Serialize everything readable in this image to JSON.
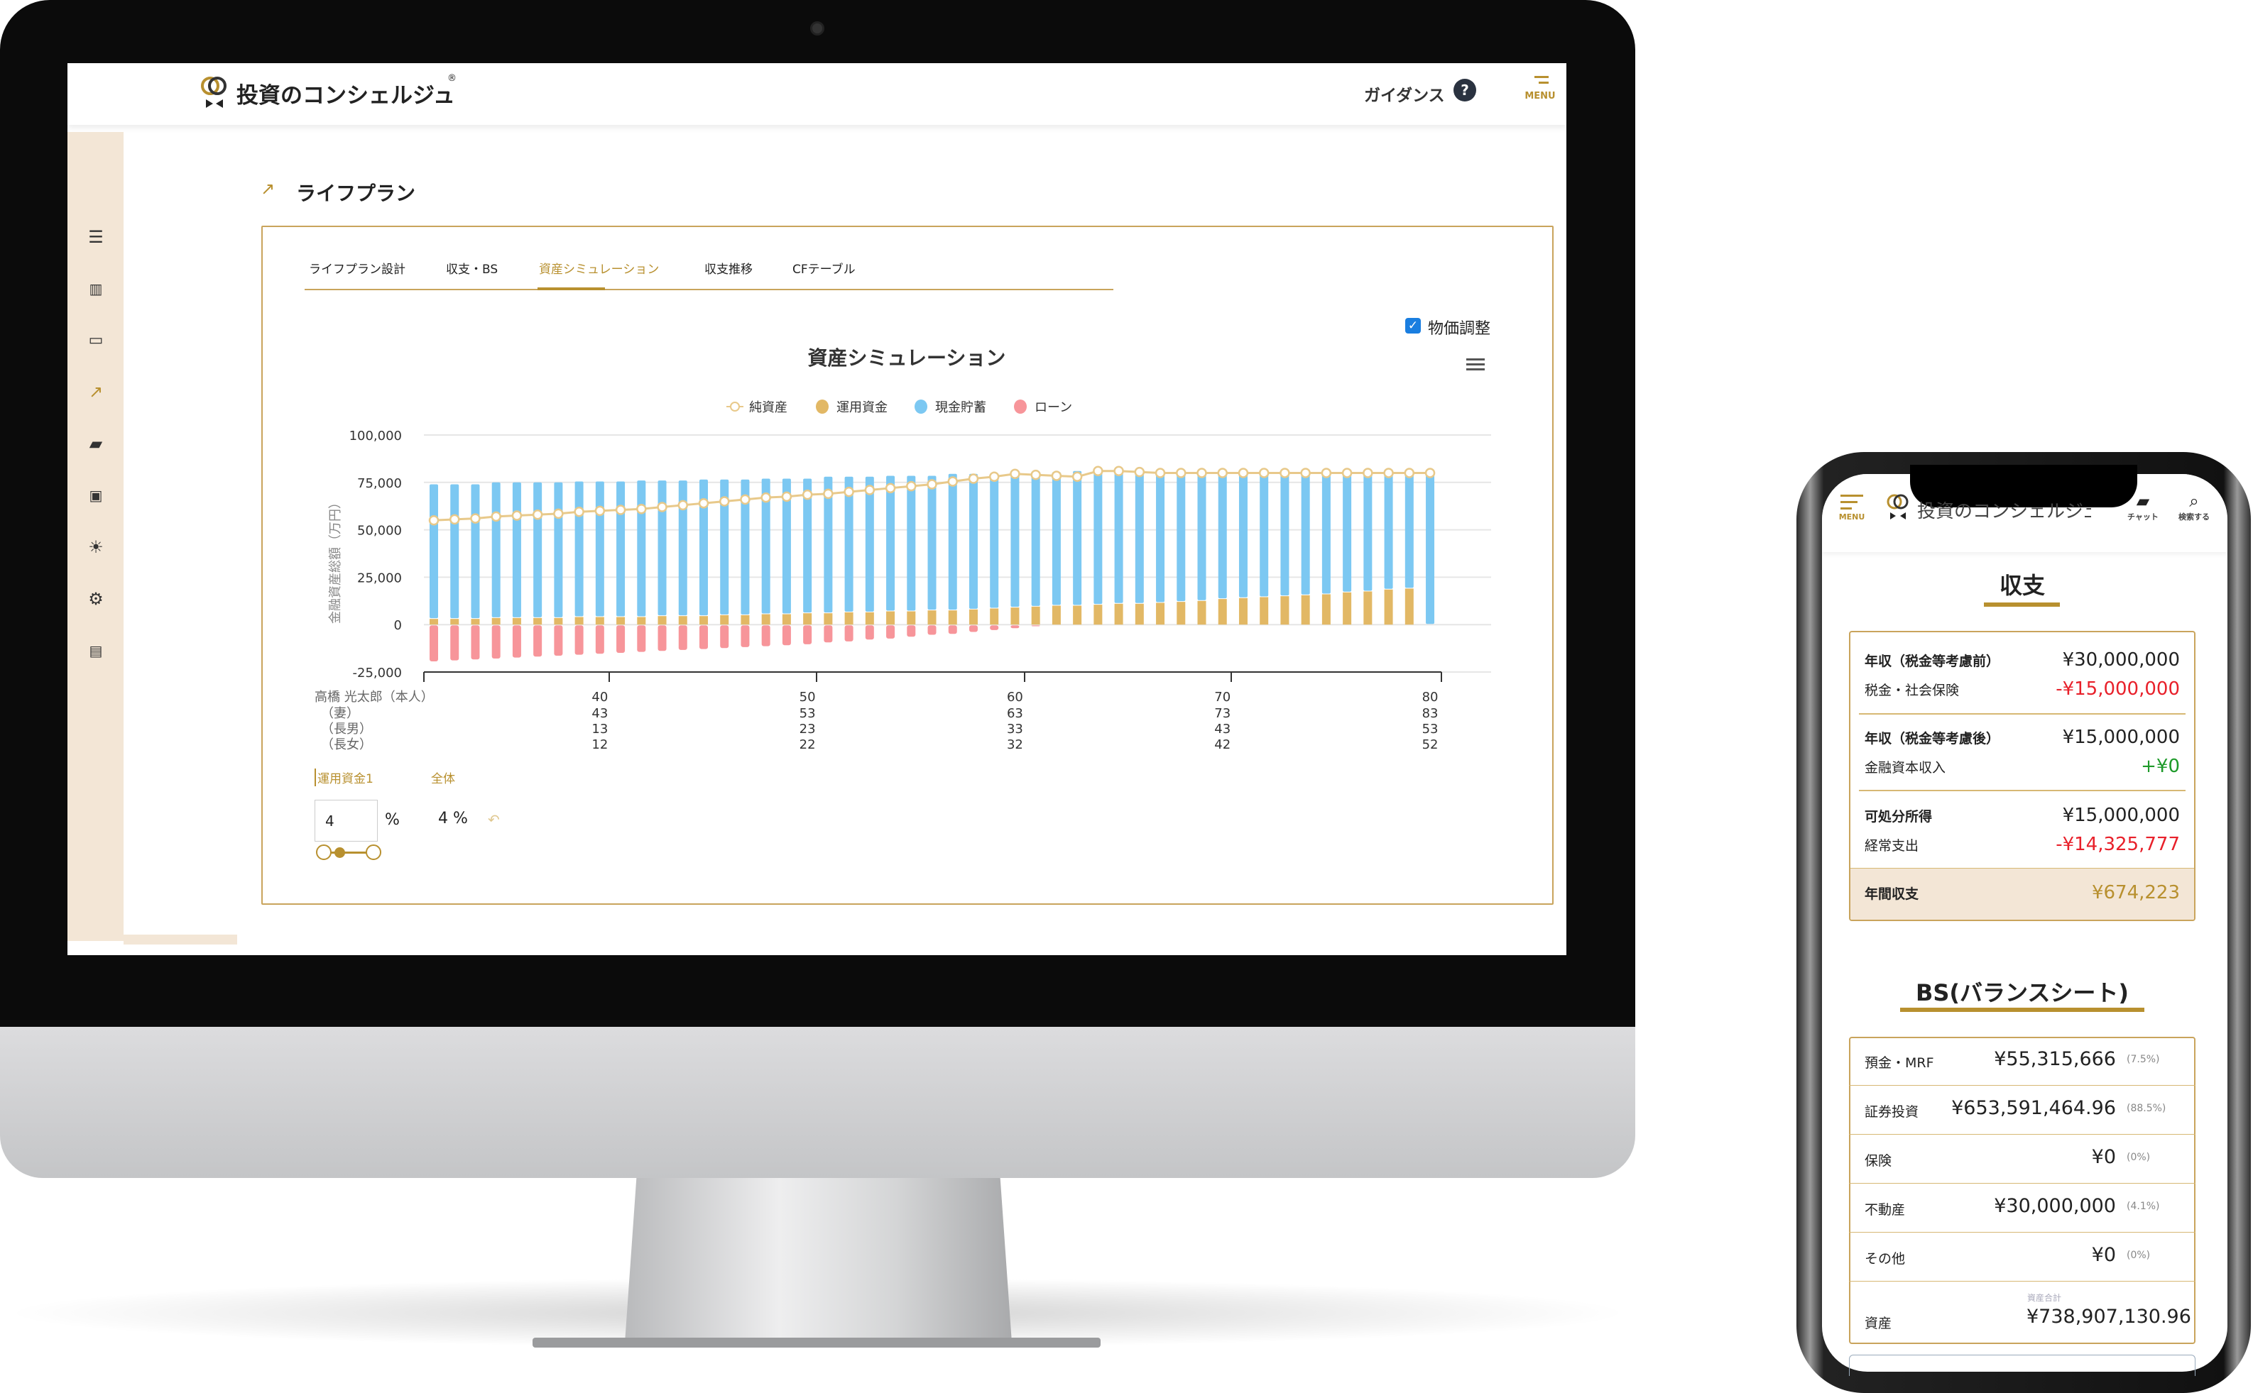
{
  "desktop": {
    "app_title": "投資のコンシェルジュ",
    "guidance_label": "ガイダンス",
    "menu_label": "MENU",
    "page_title": "ライフプラン",
    "sidebar": [
      "menu-icon",
      "report-icon",
      "card-icon",
      "chart-icon",
      "chat-icon",
      "contact-icon",
      "idea-icon",
      "gear-icon",
      "document-icon"
    ],
    "tabs": [
      {
        "label": "ライフプラン設計"
      },
      {
        "label": "収支・BS"
      },
      {
        "label": "資産シミュレーション",
        "active": true
      },
      {
        "label": "収支推移"
      },
      {
        "label": "CFテーブル"
      }
    ],
    "price_adjust": {
      "label": "物価調整",
      "checked": true
    },
    "controls": {
      "fund_tab": "運用資金1",
      "all_tab": "全体",
      "rate_value": "4",
      "rate_unit": "%",
      "overall_rate": "4 %"
    }
  },
  "chart_data": {
    "type": "bar",
    "title": "資産シミュレーション",
    "ylabel": "金融資産総額（万円）",
    "ylim": [
      -25000,
      100000
    ],
    "yticks": [
      "100,000",
      "75,000",
      "50,000",
      "25,000",
      "0",
      "-25,000"
    ],
    "grid": true,
    "legend_position": "top",
    "x_row_labels": [
      "高橋 光太郎（本人）",
      "（妻）",
      "（長男）",
      "（長女）"
    ],
    "x_tick_rows": [
      [
        "40",
        "50",
        "60",
        "70",
        "80"
      ],
      [
        "43",
        "53",
        "63",
        "73",
        "83"
      ],
      [
        "13",
        "23",
        "33",
        "43",
        "53"
      ],
      [
        "12",
        "22",
        "32",
        "42",
        "52"
      ]
    ],
    "x_age_start": 32,
    "series": [
      {
        "name": "純資産",
        "type": "line",
        "color": "#e8c98a",
        "values": [
          55000,
          55500,
          56000,
          57000,
          57500,
          58000,
          58500,
          59500,
          60000,
          60500,
          61000,
          62000,
          63000,
          64000,
          65000,
          66000,
          67000,
          67500,
          68500,
          69000,
          70000,
          71000,
          72000,
          73000,
          74000,
          75500,
          77000,
          78000,
          79500,
          79000,
          78500,
          78000,
          81000,
          81000,
          80500,
          80000,
          80000,
          80000,
          80000,
          80000,
          80000,
          80000,
          80000,
          80000,
          80000,
          80000,
          80000,
          80000,
          80000
        ]
      },
      {
        "name": "運用資金",
        "type": "bar",
        "color": "#e2b865",
        "values": [
          3000,
          3000,
          3000,
          3500,
          3500,
          3500,
          3500,
          4000,
          4000,
          4000,
          4000,
          4500,
          4500,
          4500,
          5000,
          5000,
          5500,
          5500,
          6000,
          6000,
          6500,
          6500,
          7000,
          7000,
          7500,
          7500,
          8000,
          8500,
          9000,
          9500,
          10000,
          10000,
          10500,
          11000,
          11000,
          11500,
          12000,
          12500,
          13500,
          14000,
          14500,
          15000,
          15500,
          16000,
          17000,
          17500,
          18500,
          19000,
          0
        ]
      },
      {
        "name": "現金貯蓄",
        "type": "bar",
        "color": "#7cc8f2",
        "values": [
          71000,
          71000,
          71000,
          71500,
          71500,
          71500,
          71500,
          71500,
          71500,
          71500,
          72000,
          71500,
          71500,
          72000,
          71500,
          71500,
          71500,
          71500,
          71000,
          72000,
          71500,
          71500,
          71500,
          71500,
          71000,
          72000,
          71500,
          71000,
          71500,
          71000,
          70500,
          71000,
          70500,
          70000,
          70000,
          69500,
          69000,
          68500,
          67500,
          67000,
          66500,
          66000,
          65500,
          65000,
          64000,
          63500,
          62500,
          62000,
          79500
        ]
      },
      {
        "name": "ローン",
        "type": "bar",
        "color": "#f7959a",
        "values": [
          -19000,
          -18500,
          -18000,
          -17500,
          -17000,
          -16500,
          -16000,
          -15500,
          -15000,
          -14500,
          -14000,
          -13500,
          -13000,
          -12500,
          -12000,
          -11500,
          -11000,
          -10500,
          -10000,
          -9000,
          -8500,
          -7500,
          -7000,
          -6000,
          -5000,
          -4500,
          -3500,
          -2500,
          -1500,
          -500,
          0,
          0,
          0,
          0,
          0,
          0,
          0,
          0,
          0,
          0,
          0,
          0,
          0,
          0,
          0,
          0,
          0,
          0,
          0
        ]
      }
    ]
  },
  "mobile": {
    "menu_label": "MENU",
    "app_title": "投資のコンシェルジュ",
    "chat_label": "チャット",
    "search_label": "検索する",
    "income_title": "収支",
    "income_rows": [
      {
        "label": "年収（税金等考慮前）",
        "value": "¥30,000,000",
        "tone": ""
      },
      {
        "label": "税金・社会保険",
        "value": "-¥15,000,000",
        "tone": "red"
      },
      {
        "label": "年収（税金等考慮後）",
        "value": "¥15,000,000",
        "tone": ""
      },
      {
        "label": "金融資本収入",
        "value": "+¥0",
        "tone": "grn"
      },
      {
        "label": "可処分所得",
        "value": "¥15,000,000",
        "tone": ""
      },
      {
        "label": "経常支出",
        "value": "-¥14,325,777",
        "tone": "red"
      }
    ],
    "annual": {
      "label": "年間収支",
      "value": "¥674,223"
    },
    "bs_title": "BS(バランスシート)",
    "bs_rows": [
      {
        "label": "預金・MRF",
        "value": "¥55,315,666",
        "pct": "(7.5%)"
      },
      {
        "label": "証券投資",
        "value": "¥653,591,464.96",
        "pct": "(88.5%)"
      },
      {
        "label": "保険",
        "value": "¥0",
        "pct": "(0%)"
      },
      {
        "label": "不動産",
        "value": "¥30,000,000",
        "pct": "(4.1%)"
      },
      {
        "label": "その他",
        "value": "¥0",
        "pct": "(0%)"
      }
    ],
    "total": {
      "caption": "資産合計",
      "label": "資産",
      "value": "¥738,907,130.96"
    }
  },
  "colors": {
    "accent": "#b8902f",
    "sidebar": "#f3e6d6",
    "negative": "#e8202a",
    "positive": "#1e9a2a"
  }
}
